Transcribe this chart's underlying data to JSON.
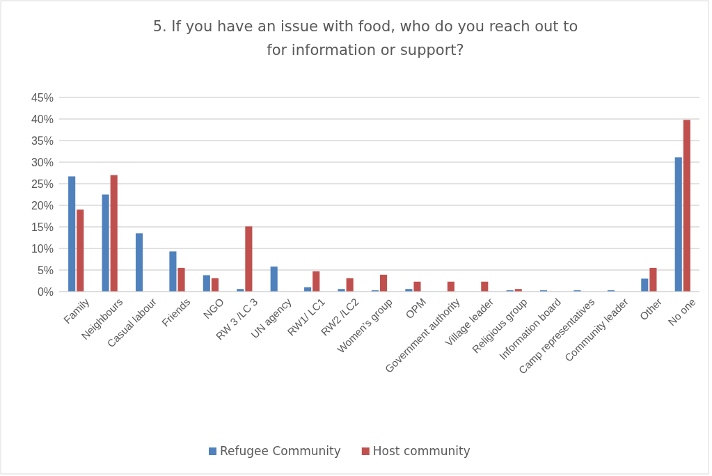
{
  "chart_data": {
    "type": "bar",
    "title": "5. If you have an issue with food, who do you reach out to for information or support?",
    "categories": [
      "Family",
      "Neighbours",
      "Casual labour",
      "Friends",
      "NGO",
      "RW 3 /LC 3",
      "UN agency",
      "RW1/ LC1",
      "RW2 /LC2",
      "Women's group",
      "OPM",
      "Government authority",
      "Village leader",
      "Religious group",
      "Information board",
      "Camp representatives",
      "Community leader",
      "Other",
      "No one"
    ],
    "series": [
      {
        "name": "Refugee Community",
        "color": "#4f81bd",
        "values": [
          26.7,
          22.5,
          13.5,
          9.3,
          3.8,
          0.6,
          5.8,
          1.0,
          0.6,
          0.3,
          0.6,
          0,
          0,
          0.3,
          0.3,
          0.3,
          0.3,
          3.0,
          31.1
        ]
      },
      {
        "name": "Host community",
        "color": "#c0504d",
        "values": [
          19.0,
          27.0,
          0,
          5.5,
          3.1,
          15.1,
          0,
          4.7,
          3.1,
          3.9,
          2.3,
          2.3,
          2.3,
          0.6,
          0,
          0,
          0,
          5.5,
          39.8
        ]
      }
    ],
    "ylim": [
      0,
      45
    ],
    "yticks": [
      {
        "value": 0,
        "label": "0%"
      },
      {
        "value": 5,
        "label": "5%"
      },
      {
        "value": 10,
        "label": "10%"
      },
      {
        "value": 15,
        "label": "15%"
      },
      {
        "value": 20,
        "label": "20%"
      },
      {
        "value": 25,
        "label": "25%"
      },
      {
        "value": 30,
        "label": "30%"
      },
      {
        "value": 35,
        "label": "35%"
      },
      {
        "value": 40,
        "label": "40%"
      },
      {
        "value": 45,
        "label": "45%"
      }
    ],
    "grid": "y",
    "legend": "bottom"
  }
}
